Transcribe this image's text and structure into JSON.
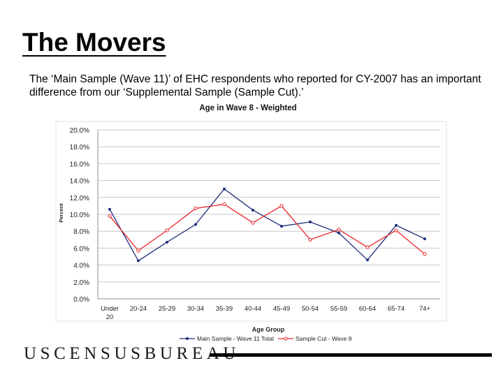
{
  "slide": {
    "title": "The Movers",
    "body": "The ‘Main Sample (Wave 11)’ of EHC respondents who reported for CY-2007 has an important difference from our ‘Supplemental Sample (Sample Cut).’"
  },
  "footer": {
    "logo_text": "USCENSUSBUREAU"
  },
  "colors": {
    "main_series": "#1f2f7a",
    "cut_series": "#e8242a",
    "grid": "#c8c8c8",
    "axis_text": "#222222"
  },
  "chart_data": {
    "type": "line",
    "title": "Age in Wave 8 - Weighted",
    "xlabel": "Age Group",
    "ylabel": "Percent",
    "categories": [
      "Under 20",
      "20-24",
      "25-29",
      "30-34",
      "35-39",
      "40-44",
      "45-49",
      "50-54",
      "55-59",
      "60-64",
      "65-74",
      "74+"
    ],
    "ylim": [
      0,
      20
    ],
    "yticks": [
      "0.0%",
      "2.0%",
      "4.0%",
      "6.0%",
      "8.0%",
      "10.0%",
      "12.0%",
      "14.0%",
      "16.0%",
      "18.0%",
      "20.0%"
    ],
    "grid": true,
    "legend_position": "bottom",
    "series": [
      {
        "name": "Main Sample - Wave 11 Total",
        "values": [
          10.6,
          4.5,
          6.7,
          8.8,
          13.0,
          10.5,
          8.6,
          9.1,
          7.8,
          4.6,
          8.7,
          7.1
        ]
      },
      {
        "name": "Sample Cut - Wave 8",
        "values": [
          9.8,
          5.7,
          8.1,
          10.7,
          11.2,
          9.0,
          11.0,
          7.0,
          8.2,
          6.1,
          8.1,
          5.3
        ]
      }
    ]
  }
}
